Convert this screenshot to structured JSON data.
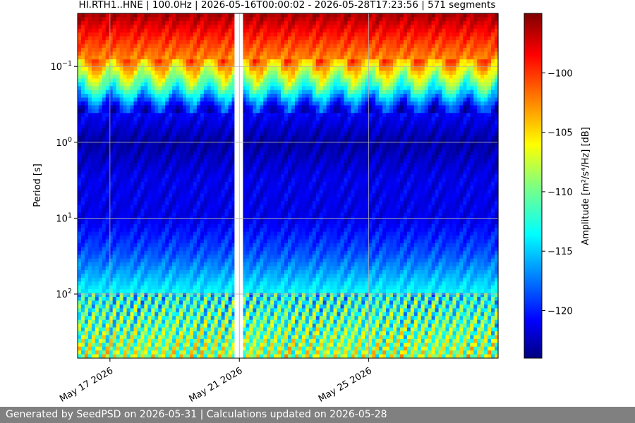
{
  "chart_data": {
    "type": "heatmap",
    "title": "HI.RTH1..HNE | 100.0Hz | 2026-05-16T00:00:02 - 2026-05-28T17:23:56 | 571 segments",
    "xlabel": "",
    "ylabel": "Period [s]",
    "y_scale": "log",
    "y_inverted": true,
    "ylim_seconds": [
      0.02,
      700
    ],
    "y_ticks": [
      {
        "value": 0.1,
        "label": "10",
        "exp": "−1"
      },
      {
        "value": 1,
        "label": "10",
        "exp": "0"
      },
      {
        "value": 10,
        "label": "10",
        "exp": "1"
      },
      {
        "value": 100,
        "label": "10",
        "exp": "2"
      }
    ],
    "x_range_days": [
      "2026-05-16",
      "2026-05-29"
    ],
    "x_ticks": [
      {
        "date": "2026-05-17",
        "label": "May 17 2026"
      },
      {
        "date": "2026-05-21",
        "label": "May 21 2026"
      },
      {
        "date": "2026-05-25",
        "label": "May 25 2026"
      }
    ],
    "data_gap_days": [
      "2026-05-20",
      "2026-05-20"
    ],
    "grid": true,
    "colormap": "jet",
    "colorbar": {
      "label": "Amplitude [m²/s⁴/Hz] [dB]",
      "range_db": [
        -124,
        -95
      ],
      "ticks": [
        -100,
        -105,
        -110,
        -115,
        -120
      ],
      "tick_labels": [
        "−100",
        "−105",
        "−110",
        "−115",
        "−120"
      ]
    },
    "amplitude_profile_db": [
      {
        "period": 0.02,
        "db": -96
      },
      {
        "period": 0.045,
        "db": -100
      },
      {
        "period": 0.09,
        "db": -103
      },
      {
        "period": 0.2,
        "db": -112
      },
      {
        "period": 0.35,
        "db": -120
      },
      {
        "period": 1,
        "db": -123
      },
      {
        "period": 3,
        "db": -121
      },
      {
        "period": 10,
        "db": -121
      },
      {
        "period": 30,
        "db": -118
      },
      {
        "period": 100,
        "db": -113
      },
      {
        "period": 700,
        "db": -108
      }
    ]
  },
  "footer": {
    "text": "Generated by SeedPSD on 2026-05-31 | Calculations updated on 2026-05-28"
  }
}
